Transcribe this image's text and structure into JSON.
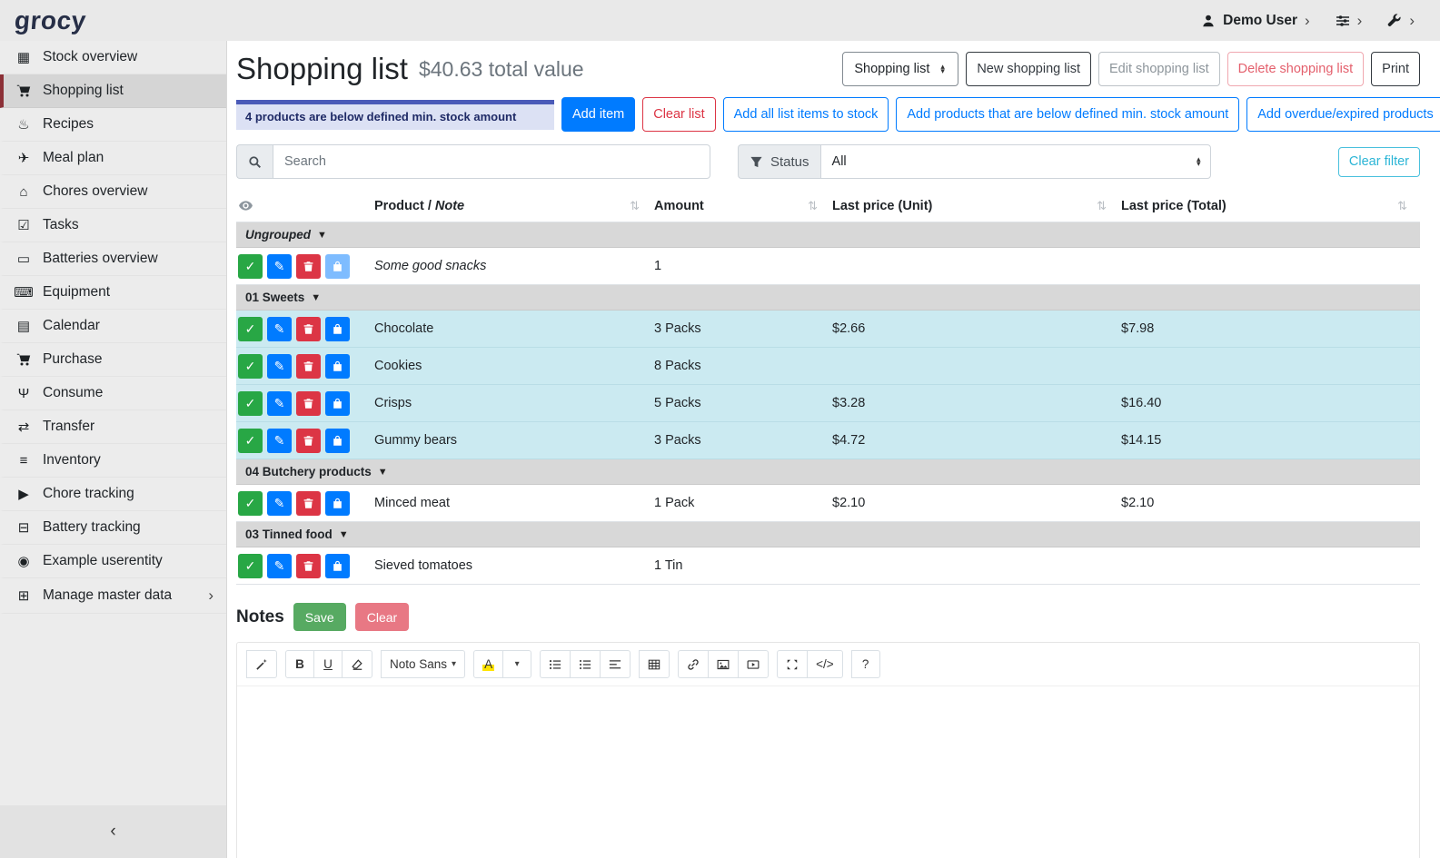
{
  "topbar": {
    "logo": "grocy",
    "user_label": "Demo User"
  },
  "sidebar": {
    "items": [
      {
        "label": "Stock overview",
        "icon": "boxes-icon"
      },
      {
        "label": "Shopping list",
        "icon": "shopping-cart-icon",
        "active": true
      },
      {
        "label": "Recipes",
        "icon": "recipes-icon"
      },
      {
        "label": "Meal plan",
        "icon": "paper-plane-icon"
      },
      {
        "label": "Chores overview",
        "icon": "home-icon"
      },
      {
        "label": "Tasks",
        "icon": "tasks-icon"
      },
      {
        "label": "Batteries overview",
        "icon": "battery-icon"
      },
      {
        "label": "Equipment",
        "icon": "equipment-icon"
      },
      {
        "label": "Calendar",
        "icon": "calendar-icon"
      },
      {
        "label": "Purchase",
        "icon": "cart-plus-icon"
      },
      {
        "label": "Consume",
        "icon": "utensils-icon"
      },
      {
        "label": "Transfer",
        "icon": "transfer-icon"
      },
      {
        "label": "Inventory",
        "icon": "list-icon"
      },
      {
        "label": "Chore tracking",
        "icon": "play-icon"
      },
      {
        "label": "Battery tracking",
        "icon": "car-battery-icon"
      },
      {
        "label": "Example userentity",
        "icon": "circle-icon"
      },
      {
        "label": "Manage master data",
        "icon": "table-icon",
        "chevron": true
      }
    ],
    "collapse_glyph": "‹"
  },
  "header": {
    "title": "Shopping list",
    "subtitle": "$40.63 total value",
    "list_select_value": "Shopping list",
    "new_button": "New shopping list",
    "edit_button": "Edit shopping list",
    "delete_button": "Delete shopping list",
    "print_button": "Print"
  },
  "banner": {
    "text": "4 products are below defined min. stock amount"
  },
  "toolbar_buttons": {
    "add_item": "Add item",
    "clear_list": "Clear list",
    "add_all_to_stock": "Add all list items to stock",
    "add_below_min": "Add products that are below defined min. stock amount",
    "add_overdue": "Add overdue/expired products"
  },
  "filters": {
    "search_placeholder": "Search",
    "status_label": "Status",
    "status_value": "All",
    "clear_filter": "Clear filter"
  },
  "table": {
    "headers": {
      "product": "Product",
      "product_sep": "/",
      "note": "Note",
      "amount": "Amount",
      "last_price_unit": "Last price (Unit)",
      "last_price_total": "Last price (Total)"
    },
    "row_actions": [
      {
        "name": "mark-done-button",
        "icon": "check-icon",
        "color": "#28a745"
      },
      {
        "name": "edit-item-button",
        "icon": "edit-icon",
        "color": "#007bff"
      },
      {
        "name": "delete-item-button",
        "icon": "trash-icon",
        "color": "#dc3545"
      },
      {
        "name": "add-to-stock-button",
        "icon": "shopping-bag-icon",
        "color": "#007bff"
      }
    ],
    "groups": [
      {
        "name": "Ungrouped",
        "italic": true,
        "rows": [
          {
            "product": "Some good snacks",
            "product_italic": true,
            "amount": "1",
            "unit_price": "",
            "total_price": "",
            "highlight": false,
            "bag_disabled": true
          }
        ]
      },
      {
        "name": "01 Sweets",
        "rows": [
          {
            "product": "Chocolate",
            "amount": "3 Packs",
            "unit_price": "$2.66",
            "total_price": "$7.98",
            "highlight": true
          },
          {
            "product": "Cookies",
            "amount": "8 Packs",
            "unit_price": "",
            "total_price": "",
            "highlight": true
          },
          {
            "product": "Crisps",
            "amount": "5 Packs",
            "unit_price": "$3.28",
            "total_price": "$16.40",
            "highlight": true
          },
          {
            "product": "Gummy bears",
            "amount": "3 Packs",
            "unit_price": "$4.72",
            "total_price": "$14.15",
            "highlight": true
          }
        ]
      },
      {
        "name": "04 Butchery products",
        "rows": [
          {
            "product": "Minced meat",
            "amount": "1 Pack",
            "unit_price": "$2.10",
            "total_price": "$2.10",
            "highlight": false
          }
        ]
      },
      {
        "name": "03 Tinned food",
        "rows": [
          {
            "product": "Sieved tomatoes",
            "amount": "1 Tin",
            "unit_price": "",
            "total_price": "",
            "highlight": false
          }
        ]
      }
    ]
  },
  "notes": {
    "title": "Notes",
    "save_button": "Save",
    "clear_button": "Clear"
  },
  "editor": {
    "toolbar_groups": [
      [
        {
          "name": "style-button",
          "icon": "magic-wand-icon"
        }
      ],
      [
        {
          "name": "bold-button",
          "text": "B",
          "bold": true
        },
        {
          "name": "underline-button",
          "text": "U",
          "underline": true
        },
        {
          "name": "clear-format-button",
          "icon": "eraser-icon"
        }
      ],
      [
        {
          "name": "font-family-dropdown",
          "text": "Noto Sans",
          "caret": true
        }
      ],
      [
        {
          "name": "text-color-button",
          "text": "A",
          "color_swatch": "#ffe400"
        },
        {
          "name": "text-color-dropdown",
          "caret": true
        }
      ],
      [
        {
          "name": "unordered-list-button",
          "icon": "list-ul-icon"
        },
        {
          "name": "ordered-list-button",
          "icon": "list-ol-icon"
        },
        {
          "name": "paragraph-button",
          "icon": "align-left-icon"
        }
      ],
      [
        {
          "name": "table-button",
          "icon": "table-grid-icon"
        }
      ],
      [
        {
          "name": "link-button",
          "icon": "link-icon"
        },
        {
          "name": "picture-button",
          "icon": "picture-icon"
        },
        {
          "name": "video-button",
          "icon": "video-icon"
        }
      ],
      [
        {
          "name": "fullscreen-button",
          "icon": "fullscreen-icon"
        },
        {
          "name": "codeview-button",
          "text": "</>"
        }
      ],
      [
        {
          "name": "help-button",
          "text": "?"
        }
      ]
    ]
  }
}
